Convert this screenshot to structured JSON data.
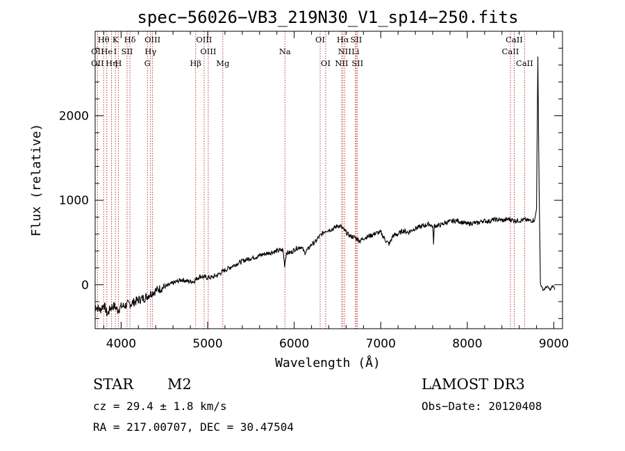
{
  "chart_data": {
    "type": "line",
    "title": "spec−56026−VB3_219N30_V1_sp14−250.fits",
    "xlabel": "Wavelength (Å)",
    "ylabel": "Flux (relative)",
    "xlim": [
      3700,
      9100
    ],
    "ylim": [
      -520,
      3000
    ],
    "xticks": [
      4000,
      5000,
      6000,
      7000,
      8000,
      9000
    ],
    "xtick_labels": [
      "4000",
      "5000",
      "6000",
      "7000",
      "8000",
      "9000"
    ],
    "yticks": [
      0,
      1000,
      2000
    ],
    "ytick_labels": [
      "0",
      "1000",
      "2000"
    ],
    "line_color": "#000000",
    "marker_color": "#b22222",
    "series": [
      {
        "name": "flux",
        "x": [
          3700,
          3760,
          3800,
          3840,
          3880,
          3920,
          3960,
          4000,
          4060,
          4120,
          4200,
          4280,
          4360,
          4440,
          4520,
          4600,
          4700,
          4780,
          4840,
          4880,
          4920,
          4960,
          5000,
          5060,
          5120,
          5180,
          5250,
          5320,
          5400,
          5480,
          5560,
          5640,
          5720,
          5800,
          5870,
          5890,
          5910,
          5960,
          6020,
          6080,
          6120,
          6160,
          6200,
          6240,
          6280,
          6320,
          6360,
          6400,
          6450,
          6500,
          6540,
          6563,
          6600,
          6640,
          6700,
          6760,
          6820,
          6880,
          6940,
          7000,
          7060,
          7100,
          7140,
          7200,
          7260,
          7320,
          7380,
          7440,
          7500,
          7560,
          7600,
          7610,
          7620,
          7660,
          7700,
          7760,
          7820,
          7880,
          7940,
          8000,
          8060,
          8120,
          8180,
          8240,
          8300,
          8360,
          8420,
          8480,
          8540,
          8600,
          8660,
          8700,
          8740,
          8780,
          8800,
          8815,
          8830,
          8845,
          8860,
          8880,
          8920,
          8960,
          8990,
          9010
        ],
        "y": [
          -250,
          -300,
          -230,
          -350,
          -270,
          -250,
          -300,
          -260,
          -240,
          -220,
          -180,
          -150,
          -90,
          -50,
          -20,
          20,
          60,
          40,
          40,
          80,
          100,
          90,
          85,
          90,
          120,
          160,
          200,
          240,
          280,
          310,
          330,
          360,
          380,
          400,
          410,
          230,
          380,
          380,
          430,
          450,
          380,
          420,
          480,
          500,
          560,
          600,
          640,
          650,
          660,
          700,
          690,
          660,
          620,
          580,
          560,
          520,
          560,
          580,
          610,
          620,
          520,
          480,
          580,
          600,
          640,
          620,
          660,
          680,
          700,
          720,
          690,
          500,
          700,
          700,
          710,
          740,
          750,
          760,
          740,
          720,
          730,
          730,
          760,
          750,
          770,
          770,
          760,
          780,
          760,
          760,
          770,
          760,
          760,
          770,
          900,
          2700,
          1100,
          20,
          -30,
          -60,
          -20,
          -60,
          -10,
          -60
        ]
      }
    ],
    "lines": [
      {
        "label": "Hθ",
        "wavelength": 3798,
        "row": 1
      },
      {
        "label": "OII",
        "wavelength": 3727,
        "row": 2
      },
      {
        "label": "OII",
        "wavelength": 3727,
        "row": 3
      },
      {
        "label": "He",
        "wavelength": 3835,
        "row": 2
      },
      {
        "label": "Hη",
        "wavelength": 3889,
        "row": 3
      },
      {
        "label": "K",
        "wavelength": 3934,
        "row": 1
      },
      {
        "label": "I",
        "wavelength": 3933,
        "row": 2
      },
      {
        "label": "SII",
        "wavelength": 4069,
        "row": 2
      },
      {
        "label": "H",
        "wavelength": 3968,
        "row": 3
      },
      {
        "label": "Hδ",
        "wavelength": 4102,
        "row": 1
      },
      {
        "label": "OIII",
        "wavelength": 4363,
        "row": 1
      },
      {
        "label": "Hγ",
        "wavelength": 4340,
        "row": 2
      },
      {
        "label": "G",
        "wavelength": 4304,
        "row": 3
      },
      {
        "label": "OIII",
        "wavelength": 4959,
        "row": 1
      },
      {
        "label": "OIII",
        "wavelength": 5007,
        "row": 2
      },
      {
        "label": "Hβ",
        "wavelength": 4861,
        "row": 3
      },
      {
        "label": "Mg",
        "wavelength": 5175,
        "row": 3
      },
      {
        "label": "Na",
        "wavelength": 5893,
        "row": 2
      },
      {
        "label": "OI",
        "wavelength": 6300,
        "row": 1
      },
      {
        "label": "OI",
        "wavelength": 6364,
        "row": 3
      },
      {
        "label": "Hα",
        "wavelength": 6563,
        "row": 1
      },
      {
        "label": "SII",
        "wavelength": 6716,
        "row": 1
      },
      {
        "label": "NII",
        "wavelength": 6583,
        "row": 2
      },
      {
        "label": "Li",
        "wavelength": 6708,
        "row": 2
      },
      {
        "label": "NII",
        "wavelength": 6548,
        "row": 3
      },
      {
        "label": "SII",
        "wavelength": 6731,
        "row": 3
      },
      {
        "label": "CaII",
        "wavelength": 8542,
        "row": 1
      },
      {
        "label": "CaII",
        "wavelength": 8498,
        "row": 2
      },
      {
        "label": "CaII",
        "wavelength": 8662,
        "row": 3
      }
    ]
  },
  "info": {
    "object_class": "STAR",
    "subclass": "M2",
    "survey": "LAMOST DR3",
    "redshift": "cz = 29.4 ± 1.8 km/s",
    "obs_date": "Obs−Date: 20120408",
    "coords": "RA = 217.00707, DEC =  30.47504"
  }
}
